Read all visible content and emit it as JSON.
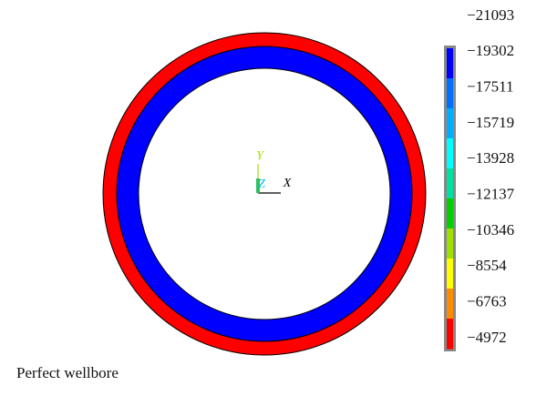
{
  "plot": {
    "axes": {
      "y": "Y",
      "z": "Z",
      "x": "X"
    },
    "legend": {
      "labels": [
        "−21093",
        "−19302",
        "−17511",
        "−15719",
        "−13928",
        "−12137",
        "−10346",
        "−8554",
        "−6763",
        "−4972"
      ]
    },
    "caption": "Perfect wellbore"
  }
}
